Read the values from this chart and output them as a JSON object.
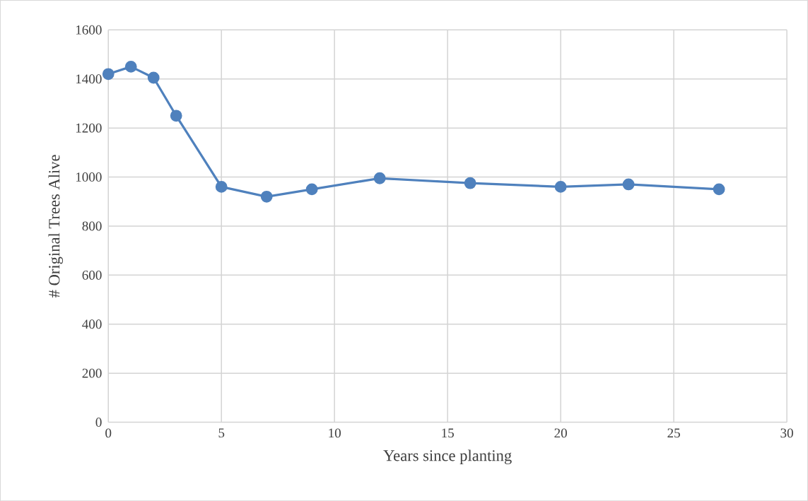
{
  "chart_data": {
    "type": "line",
    "xlabel": "Years since planting",
    "ylabel": "# Original Trees Alive",
    "x": [
      0,
      1,
      2,
      3,
      5,
      7,
      9,
      12,
      16,
      20,
      23,
      27
    ],
    "series": [
      {
        "color": "#4f81bd",
        "values": [
          1420,
          1450,
          1405,
          1250,
          960,
          920,
          950,
          995,
          975,
          960,
          970,
          950
        ]
      }
    ],
    "xlim": [
      0,
      30
    ],
    "ylim": [
      0,
      1600
    ],
    "xticks": [
      0,
      5,
      10,
      15,
      20,
      25,
      30
    ],
    "yticks": [
      0,
      200,
      400,
      600,
      800,
      1000,
      1200,
      1400,
      1600
    ],
    "grid": true,
    "marker": "circle",
    "line_style": "solid"
  }
}
